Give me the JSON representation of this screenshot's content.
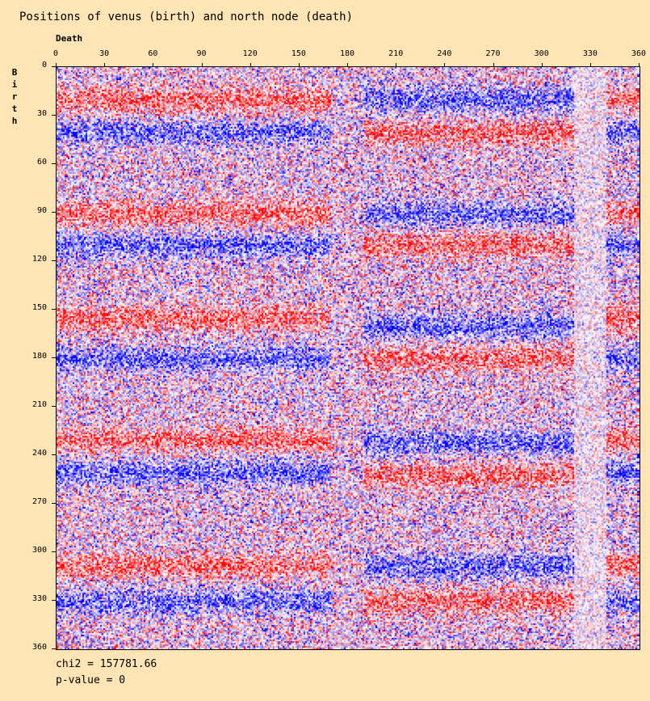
{
  "chart_data": {
    "type": "heatmap",
    "title": "Positions of venus (birth) and north node (death)",
    "xlabel": "Death",
    "ylabel": "Birth",
    "xlim": [
      0,
      360
    ],
    "ylim": [
      0,
      360
    ],
    "x_ticks": [
      0,
      30,
      60,
      90,
      120,
      150,
      180,
      210,
      240,
      270,
      300,
      330,
      360
    ],
    "y_ticks": [
      0,
      30,
      60,
      90,
      120,
      150,
      180,
      210,
      240,
      270,
      300,
      330,
      360
    ],
    "cell_size_deg": 1,
    "colors": {
      "positive": "#ff0000",
      "neutral": "#ffffff",
      "negative": "#0000ff"
    },
    "bands": [
      {
        "birth": 20,
        "death_ranges": [
          [
            0,
            170
          ],
          [
            340,
            360
          ]
        ],
        "sign": 1
      },
      {
        "birth": 40,
        "death_ranges": [
          [
            0,
            170
          ],
          [
            340,
            360
          ]
        ],
        "sign": -1
      },
      {
        "birth": 90,
        "death_ranges": [
          [
            0,
            170
          ],
          [
            340,
            360
          ]
        ],
        "sign": 1
      },
      {
        "birth": 110,
        "death_ranges": [
          [
            0,
            170
          ],
          [
            340,
            360
          ]
        ],
        "sign": -1
      },
      {
        "birth": 155,
        "death_ranges": [
          [
            0,
            170
          ],
          [
            340,
            360
          ]
        ],
        "sign": 1
      },
      {
        "birth": 180,
        "death_ranges": [
          [
            0,
            170
          ],
          [
            340,
            360
          ]
        ],
        "sign": -1
      },
      {
        "birth": 230,
        "death_ranges": [
          [
            0,
            170
          ],
          [
            340,
            360
          ]
        ],
        "sign": 1
      },
      {
        "birth": 250,
        "death_ranges": [
          [
            0,
            170
          ],
          [
            340,
            360
          ]
        ],
        "sign": -1
      },
      {
        "birth": 308,
        "death_ranges": [
          [
            0,
            170
          ],
          [
            340,
            360
          ]
        ],
        "sign": 1
      },
      {
        "birth": 330,
        "death_ranges": [
          [
            0,
            170
          ],
          [
            340,
            360
          ]
        ],
        "sign": -1
      },
      {
        "birth": 20,
        "death_ranges": [
          [
            190,
            320
          ]
        ],
        "sign": -1
      },
      {
        "birth": 40,
        "death_ranges": [
          [
            190,
            320
          ]
        ],
        "sign": 1
      },
      {
        "birth": 90,
        "death_ranges": [
          [
            190,
            320
          ]
        ],
        "sign": -1
      },
      {
        "birth": 110,
        "death_ranges": [
          [
            190,
            320
          ]
        ],
        "sign": 1
      },
      {
        "birth": 160,
        "death_ranges": [
          [
            190,
            320
          ]
        ],
        "sign": -1
      },
      {
        "birth": 180,
        "death_ranges": [
          [
            190,
            320
          ]
        ],
        "sign": 1
      },
      {
        "birth": 232,
        "death_ranges": [
          [
            190,
            320
          ]
        ],
        "sign": -1
      },
      {
        "birth": 252,
        "death_ranges": [
          [
            190,
            320
          ]
        ],
        "sign": 1
      },
      {
        "birth": 308,
        "death_ranges": [
          [
            190,
            320
          ]
        ],
        "sign": -1
      },
      {
        "birth": 330,
        "death_ranges": [
          [
            190,
            320
          ]
        ],
        "sign": 1
      }
    ]
  },
  "stats": {
    "chi2": "chi2 = 157781.66",
    "pvalue": "p-value = 0"
  }
}
